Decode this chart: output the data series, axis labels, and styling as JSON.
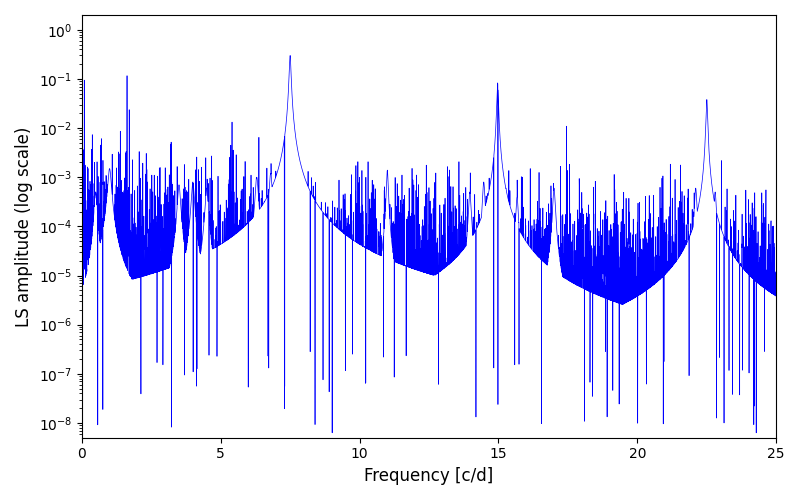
{
  "xlabel": "Frequency [c/d]",
  "ylabel": "LS amplitude (log scale)",
  "xlim": [
    0,
    25
  ],
  "ylim_log_min": -8.3,
  "ylim_log_max": 0.3,
  "line_color": "#0000ff",
  "line_width": 0.5,
  "figsize": [
    8.0,
    5.0
  ],
  "dpi": 100,
  "background_color": "#ffffff",
  "peak1_freq": 7.5,
  "peak1_amp": 0.3,
  "peak2_freq": 14.97,
  "peak2_amp": 0.083,
  "peak3_freq": 22.5,
  "peak3_amp": 0.038,
  "noise_floor_log_mean": -4.7,
  "noise_floor_log_std": 0.9,
  "seed": 12345,
  "n_points": 6000
}
